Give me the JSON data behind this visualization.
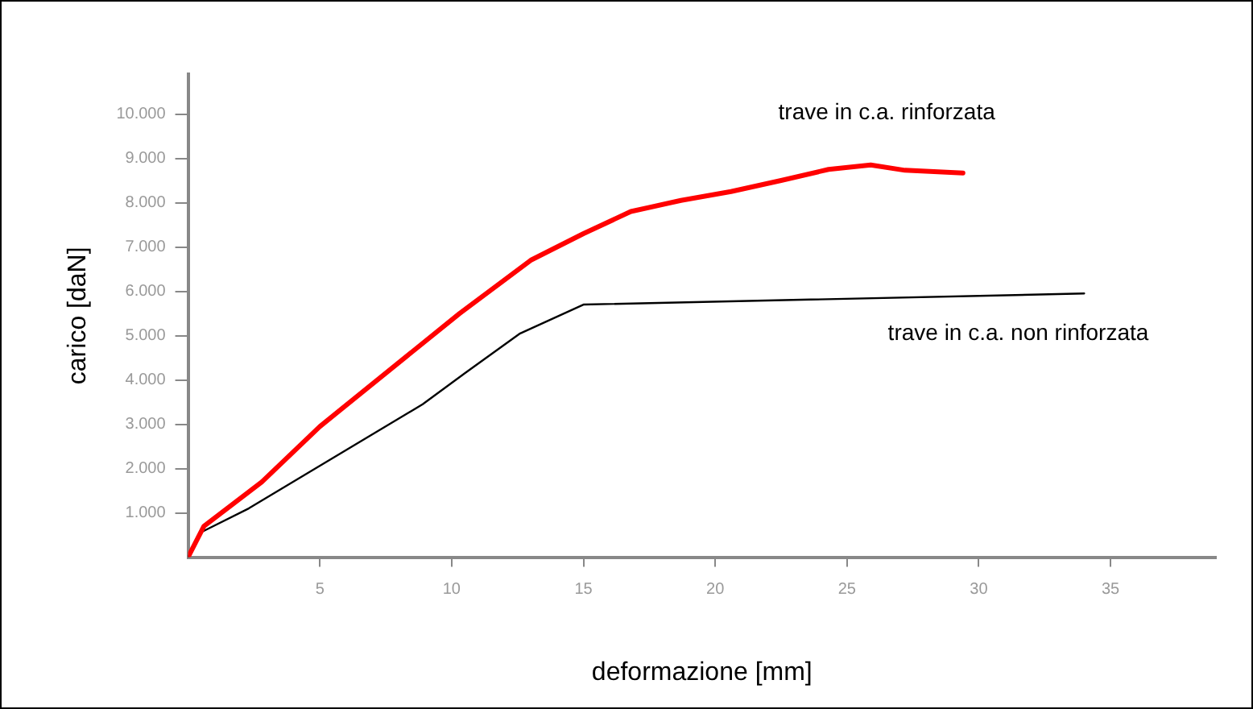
{
  "chart_data": {
    "type": "line",
    "xlabel": "deformazione [mm]",
    "ylabel": "carico [daN]",
    "xlim": [
      0,
      39
    ],
    "ylim": [
      0,
      10900
    ],
    "xticks": [
      5,
      10,
      15,
      20,
      25,
      30,
      35
    ],
    "yticks": [
      {
        "value": 1000,
        "label": "1.000"
      },
      {
        "value": 2000,
        "label": "2.000"
      },
      {
        "value": 3000,
        "label": "3.000"
      },
      {
        "value": 4000,
        "label": "4.000"
      },
      {
        "value": 5000,
        "label": "5.000"
      },
      {
        "value": 6000,
        "label": "6.000"
      },
      {
        "value": 7000,
        "label": "7.000"
      },
      {
        "value": 8000,
        "label": "8.000"
      },
      {
        "value": 9000,
        "label": "9.000"
      },
      {
        "value": 10000,
        "label": "10.000"
      }
    ],
    "grid": false,
    "legend": false,
    "marker": "none",
    "line_style": "solid",
    "series": [
      {
        "name": "trave in c.a. rinforzata",
        "color": "#ff0000",
        "x": [
          0,
          0.6,
          2.8,
          5,
          10.3,
          13,
          15,
          16.8,
          18.7,
          20.6,
          22.5,
          24.3,
          25.9,
          27.2,
          29.4
        ],
        "values": [
          0,
          700,
          1700,
          2950,
          5500,
          6700,
          7300,
          7800,
          8050,
          8250,
          8500,
          8750,
          8850,
          8730,
          8670
        ]
      },
      {
        "name": "trave in c.a. non rinforzata",
        "color": "#000000",
        "x": [
          0,
          0.45,
          2.3,
          8.9,
          10.5,
          12.6,
          15,
          34
        ],
        "values": [
          0,
          550,
          1100,
          3450,
          4150,
          5050,
          5700,
          5950
        ]
      }
    ]
  }
}
